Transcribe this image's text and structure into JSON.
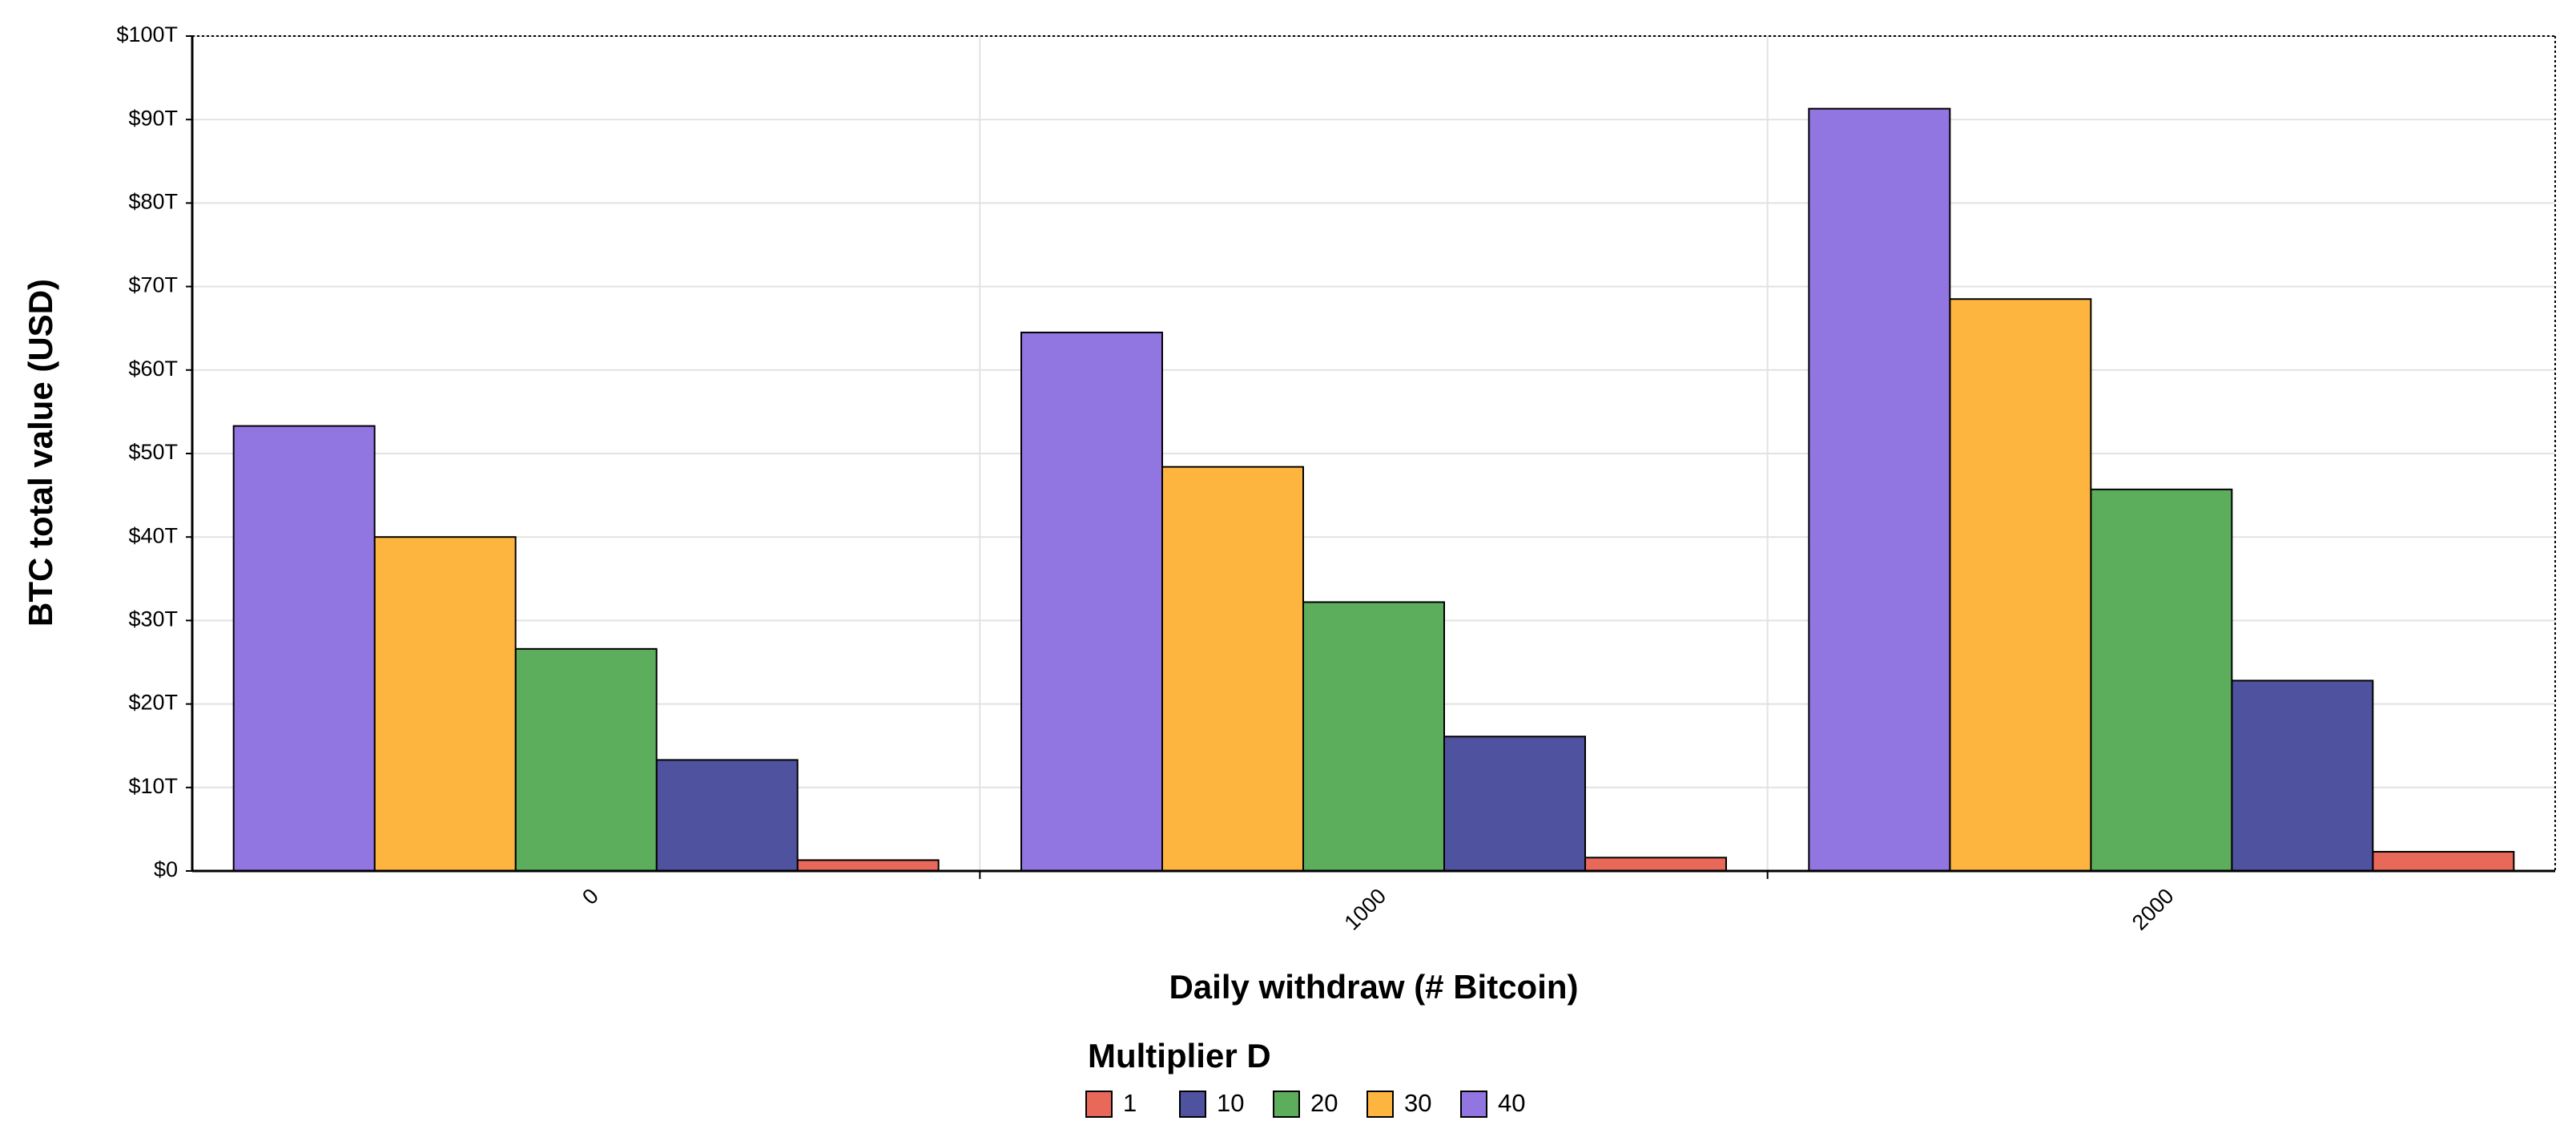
{
  "chart_data": {
    "type": "bar",
    "x_label": "Daily withdraw (# Bitcoin)",
    "y_label": "BTC total value (USD)",
    "legend_title": "Multiplier D",
    "categories": [
      "0",
      "1000",
      "2000"
    ],
    "series": [
      {
        "name": "1",
        "color": "#e8695a",
        "values": [
          1300000000000,
          1600000000000,
          2300000000000
        ]
      },
      {
        "name": "10",
        "color": "#4f529e",
        "values": [
          13300000000000,
          16100000000000,
          22800000000000
        ]
      },
      {
        "name": "20",
        "color": "#5cae5c",
        "values": [
          26600000000000,
          32200000000000,
          45700000000000
        ]
      },
      {
        "name": "30",
        "color": "#fdb53f",
        "values": [
          40000000000000,
          48400000000000,
          68500000000000
        ]
      },
      {
        "name": "40",
        "color": "#9175e0",
        "values": [
          53300000000000,
          64500000000000,
          91300000000000
        ]
      }
    ],
    "ylim": [
      0,
      100000000000000
    ],
    "yticks": [
      {
        "value": 0,
        "label": "$0"
      },
      {
        "value": 10000000000000,
        "label": "$10T"
      },
      {
        "value": 20000000000000,
        "label": "$20T"
      },
      {
        "value": 30000000000000,
        "label": "$30T"
      },
      {
        "value": 40000000000000,
        "label": "$40T"
      },
      {
        "value": 50000000000000,
        "label": "$50T"
      },
      {
        "value": 60000000000000,
        "label": "$60T"
      },
      {
        "value": 70000000000000,
        "label": "$70T"
      },
      {
        "value": 80000000000000,
        "label": "$80T"
      },
      {
        "value": 90000000000000,
        "label": "$90T"
      },
      {
        "value": 100000000000000,
        "label": "$100T"
      }
    ],
    "grid": true
  }
}
